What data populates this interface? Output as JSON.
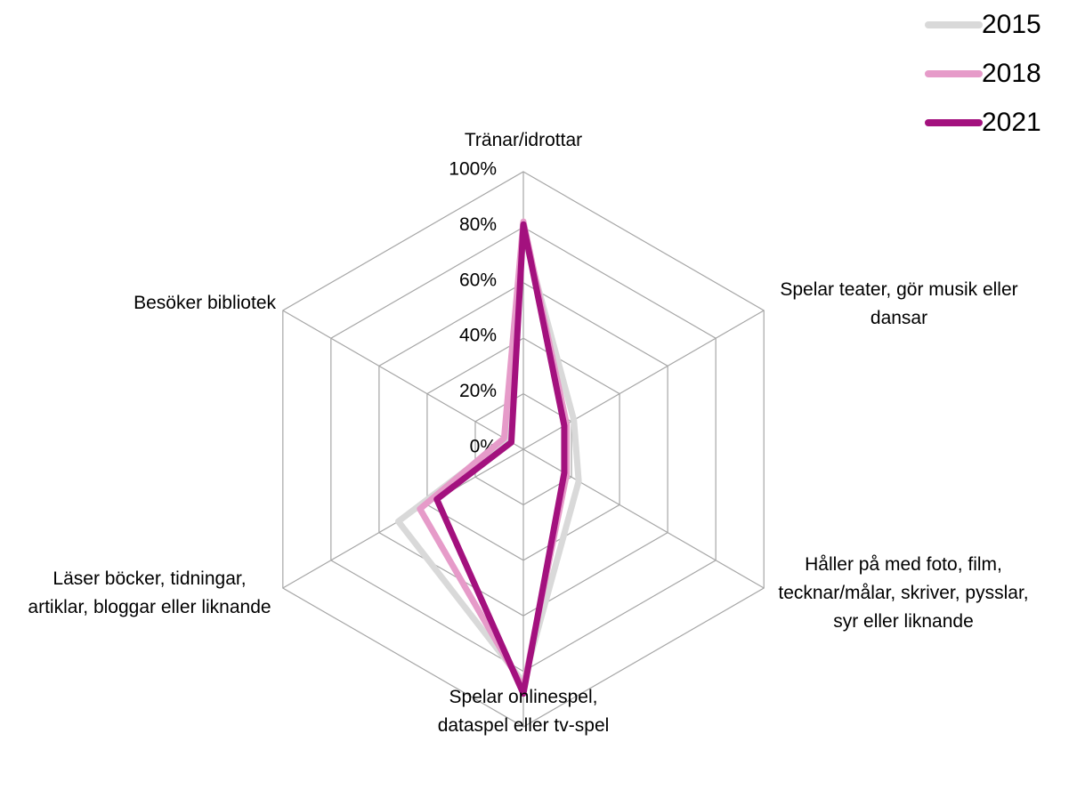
{
  "chart_data": {
    "type": "radar",
    "categories": [
      "Tränar/idrottar",
      "Spelar teater, gör musik eller dansar",
      "Håller på med foto, film, tecknar/målar, skriver, pysslar, syr eller liknande",
      "Spelar onlinespel, dataspel eller tv-spel",
      "Läser böcker, tidningar, artiklar, bloggar eller liknande",
      "Besöker bibliotek"
    ],
    "series": [
      {
        "name": "2015",
        "color": "#d9d9d9",
        "values": [
          78,
          21,
          23,
          84,
          52,
          7
        ]
      },
      {
        "name": "2018",
        "color": "#e69bc9",
        "values": [
          82,
          18,
          18,
          86,
          43,
          8
        ]
      },
      {
        "name": "2021",
        "color": "#a3117e",
        "values": [
          81,
          17,
          17,
          88,
          36,
          5
        ]
      }
    ],
    "rlim": [
      0,
      100
    ],
    "rticks": [
      {
        "value": 0,
        "label": "0%"
      },
      {
        "value": 20,
        "label": "20%"
      },
      {
        "value": 40,
        "label": "40%"
      },
      {
        "value": 60,
        "label": "60%"
      },
      {
        "value": 80,
        "label": "80%"
      },
      {
        "value": 100,
        "label": "100%"
      }
    ],
    "grid": true,
    "legend": "top-right"
  }
}
